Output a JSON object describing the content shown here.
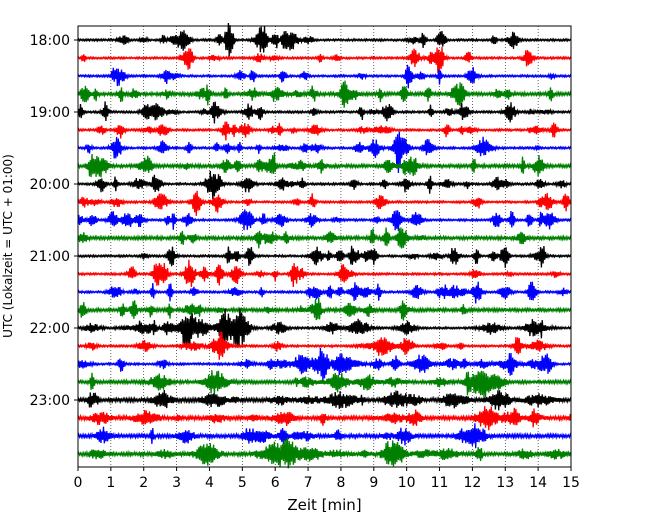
{
  "chart_data": {
    "type": "line",
    "title": "",
    "xlabel": "Zeit  [min]",
    "ylabel": "UTC (Lokalzeit = UTC + 01:00)",
    "xlim": [
      0,
      15
    ],
    "x_ticks": [
      0,
      1,
      2,
      3,
      4,
      5,
      6,
      7,
      8,
      9,
      10,
      11,
      12,
      13,
      14,
      15
    ],
    "x_tick_labels": [
      "0",
      "1",
      "2",
      "3",
      "4",
      "5",
      "6",
      "7",
      "8",
      "9",
      "10",
      "11",
      "12",
      "13",
      "14",
      "15"
    ],
    "y_tick_labels": [
      "18:00",
      "19:00",
      "20:00",
      "21:00",
      "22:00",
      "23:00"
    ],
    "trace_interval_min": 15,
    "trace_count": 24,
    "trace_colors": [
      "#000000",
      "#ff0000",
      "#0000ff",
      "#008000"
    ],
    "grid": "vertical dotted lines at each minute",
    "legend": "none"
  }
}
